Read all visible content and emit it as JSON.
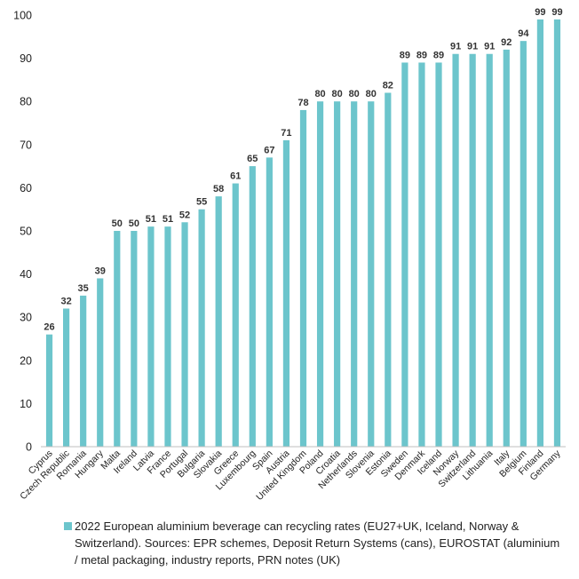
{
  "chart_data": {
    "type": "bar",
    "categories": [
      "Cyprus",
      "Czech Republic",
      "Romania",
      "Hungary",
      "Malta",
      "Ireland",
      "Latvia",
      "France",
      "Portugal",
      "Bulgaria",
      "Slovakia",
      "Greece",
      "Luxembourg",
      "Spain",
      "Austria",
      "United Kingdom",
      "Poland",
      "Croatia",
      "Netherlands",
      "Slovenia",
      "Estonia",
      "Sweden",
      "Denmark",
      "Iceland",
      "Norway",
      "Switzerland",
      "Lithuania",
      "Italy",
      "Belgium",
      "Finland",
      "Germany"
    ],
    "series": [
      {
        "name": "2022 European aluminium beverage can recycling rates (EU27+UK, Iceland, Norway & Switzerland). Sources: EPR schemes, Deposit Return Systems (cans), EUROSTAT (aluminium / metal packaging, industry reports, PRN notes (UK)",
        "values": [
          26,
          32,
          35,
          39,
          50,
          50,
          51,
          51,
          52,
          55,
          58,
          61,
          65,
          67,
          71,
          78,
          80,
          80,
          80,
          80,
          82,
          89,
          89,
          89,
          91,
          91,
          91,
          92,
          94,
          99,
          99
        ],
        "color": "#6cc5cc"
      }
    ],
    "ylim": [
      0,
      100
    ],
    "yticks": [
      0,
      10,
      20,
      30,
      40,
      50,
      60,
      70,
      80,
      90,
      100
    ],
    "grid": false,
    "data_labels": true,
    "legend_position": "bottom"
  }
}
